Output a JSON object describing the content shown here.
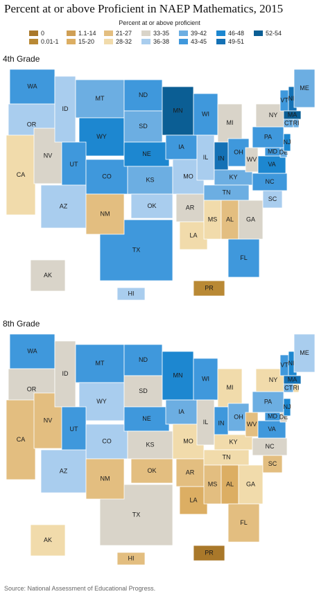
{
  "title": "Percent at or above Proficient in NAEP Mathematics, 2015",
  "legend": {
    "title": "Percent at or above proficient",
    "items": [
      {
        "label": "0",
        "color": "#a9782a"
      },
      {
        "label": "0.01-1",
        "color": "#b98935"
      },
      {
        "label": "1.1-14",
        "color": "#cf9f55"
      },
      {
        "label": "15-20",
        "color": "#dcae63"
      },
      {
        "label": "21-27",
        "color": "#e3be80"
      },
      {
        "label": "28-32",
        "color": "#f1dbab"
      },
      {
        "label": "33-35",
        "color": "#d9d4c9"
      },
      {
        "label": "36-38",
        "color": "#a9cdee"
      },
      {
        "label": "39-42",
        "color": "#6caee2"
      },
      {
        "label": "43-45",
        "color": "#3f98dc"
      },
      {
        "label": "46-48",
        "color": "#1d87d0"
      },
      {
        "label": "49-51",
        "color": "#1471b5"
      },
      {
        "label": "52-54",
        "color": "#0b5e94"
      }
    ]
  },
  "maps": [
    {
      "title": "4th Grade",
      "states": [
        {
          "label": "WA",
          "bin": "43-45"
        },
        {
          "label": "OR",
          "bin": "36-38"
        },
        {
          "label": "CA",
          "bin": "28-32"
        },
        {
          "label": "NV",
          "bin": "33-35"
        },
        {
          "label": "ID",
          "bin": "36-38"
        },
        {
          "label": "MT",
          "bin": "39-42"
        },
        {
          "label": "WY",
          "bin": "46-48"
        },
        {
          "label": "UT",
          "bin": "43-45"
        },
        {
          "label": "CO",
          "bin": "43-45"
        },
        {
          "label": "AZ",
          "bin": "36-38"
        },
        {
          "label": "TX",
          "bin": "43-45"
        },
        {
          "label": "NM",
          "bin": "21-27"
        },
        {
          "label": "ND",
          "bin": "43-45"
        },
        {
          "label": "SD",
          "bin": "39-42"
        },
        {
          "label": "NE",
          "bin": "46-48"
        },
        {
          "label": "KS",
          "bin": "39-42"
        },
        {
          "label": "OK",
          "bin": "36-38"
        },
        {
          "label": "MN",
          "bin": "52-54"
        },
        {
          "label": "IA",
          "bin": "43-45"
        },
        {
          "label": "MO",
          "bin": "36-38"
        },
        {
          "label": "AR",
          "bin": "33-35"
        },
        {
          "label": "LA",
          "bin": "28-32"
        },
        {
          "label": "WI",
          "bin": "43-45"
        },
        {
          "label": "IL",
          "bin": "36-38"
        },
        {
          "label": "MI",
          "bin": "33-35"
        },
        {
          "label": "IN",
          "bin": "49-51"
        },
        {
          "label": "OH",
          "bin": "43-45"
        },
        {
          "label": "KY",
          "bin": "39-42"
        },
        {
          "label": "TN",
          "bin": "39-42"
        },
        {
          "label": "MS",
          "bin": "28-32"
        },
        {
          "label": "AL",
          "bin": "21-27"
        },
        {
          "label": "GA",
          "bin": "33-35"
        },
        {
          "label": "FL",
          "bin": "43-45"
        },
        {
          "label": "SC",
          "bin": "36-38"
        },
        {
          "label": "NC",
          "bin": "43-45"
        },
        {
          "label": "WV",
          "bin": "33-35"
        },
        {
          "label": "VA",
          "bin": "46-48"
        },
        {
          "label": "MD",
          "bin": "43-45"
        },
        {
          "label": "DE",
          "bin": "39-42"
        },
        {
          "label": "PA",
          "bin": "43-45"
        },
        {
          "label": "NJ",
          "bin": "46-48"
        },
        {
          "label": "NY",
          "bin": "33-35"
        },
        {
          "label": "VT",
          "bin": "43-45"
        },
        {
          "label": "NH",
          "bin": "49-51"
        },
        {
          "label": "MA",
          "bin": "52-54"
        },
        {
          "label": "CT",
          "bin": "39-42"
        },
        {
          "label": "RI",
          "bin": "39-42"
        },
        {
          "label": "ME",
          "bin": "39-42"
        },
        {
          "label": "AK",
          "bin": "33-35"
        },
        {
          "label": "HI",
          "bin": "36-38"
        },
        {
          "label": "PR",
          "bin": "0.01-1"
        }
      ]
    },
    {
      "title": "8th Grade",
      "states": [
        {
          "label": "WA",
          "bin": "43-45"
        },
        {
          "label": "OR",
          "bin": "33-35"
        },
        {
          "label": "CA",
          "bin": "21-27"
        },
        {
          "label": "NV",
          "bin": "21-27"
        },
        {
          "label": "ID",
          "bin": "33-35"
        },
        {
          "label": "MT",
          "bin": "43-45"
        },
        {
          "label": "WY",
          "bin": "36-38"
        },
        {
          "label": "UT",
          "bin": "43-45"
        },
        {
          "label": "CO",
          "bin": "36-38"
        },
        {
          "label": "AZ",
          "bin": "36-38"
        },
        {
          "label": "TX",
          "bin": "33-35"
        },
        {
          "label": "NM",
          "bin": "21-27"
        },
        {
          "label": "ND",
          "bin": "43-45"
        },
        {
          "label": "SD",
          "bin": "33-35"
        },
        {
          "label": "NE",
          "bin": "43-45"
        },
        {
          "label": "KS",
          "bin": "33-35"
        },
        {
          "label": "OK",
          "bin": "21-27"
        },
        {
          "label": "MN",
          "bin": "46-48"
        },
        {
          "label": "IA",
          "bin": "39-42"
        },
        {
          "label": "MO",
          "bin": "28-32"
        },
        {
          "label": "AR",
          "bin": "21-27"
        },
        {
          "label": "LA",
          "bin": "15-20"
        },
        {
          "label": "WI",
          "bin": "43-45"
        },
        {
          "label": "IL",
          "bin": "33-35"
        },
        {
          "label": "MI",
          "bin": "28-32"
        },
        {
          "label": "IN",
          "bin": "43-45"
        },
        {
          "label": "OH",
          "bin": "39-42"
        },
        {
          "label": "KY",
          "bin": "28-32"
        },
        {
          "label": "TN",
          "bin": "28-32"
        },
        {
          "label": "MS",
          "bin": "21-27"
        },
        {
          "label": "AL",
          "bin": "15-20"
        },
        {
          "label": "GA",
          "bin": "28-32"
        },
        {
          "label": "FL",
          "bin": "21-27"
        },
        {
          "label": "SC",
          "bin": "21-27"
        },
        {
          "label": "NC",
          "bin": "33-35"
        },
        {
          "label": "WV",
          "bin": "21-27"
        },
        {
          "label": "VA",
          "bin": "43-45"
        },
        {
          "label": "MD",
          "bin": "43-45"
        },
        {
          "label": "DE",
          "bin": "33-35"
        },
        {
          "label": "PA",
          "bin": "39-42"
        },
        {
          "label": "NJ",
          "bin": "46-48"
        },
        {
          "label": "NY",
          "bin": "28-32"
        },
        {
          "label": "VT",
          "bin": "43-45"
        },
        {
          "label": "NH",
          "bin": "46-48"
        },
        {
          "label": "MA",
          "bin": "49-51"
        },
        {
          "label": "CT",
          "bin": "39-42"
        },
        {
          "label": "RI",
          "bin": "28-32"
        },
        {
          "label": "ME",
          "bin": "36-38"
        },
        {
          "label": "AK",
          "bin": "28-32"
        },
        {
          "label": "HI",
          "bin": "21-27"
        },
        {
          "label": "PR",
          "bin": "0"
        }
      ]
    }
  ],
  "source": "Source: National Assessment of Educational Progress."
}
